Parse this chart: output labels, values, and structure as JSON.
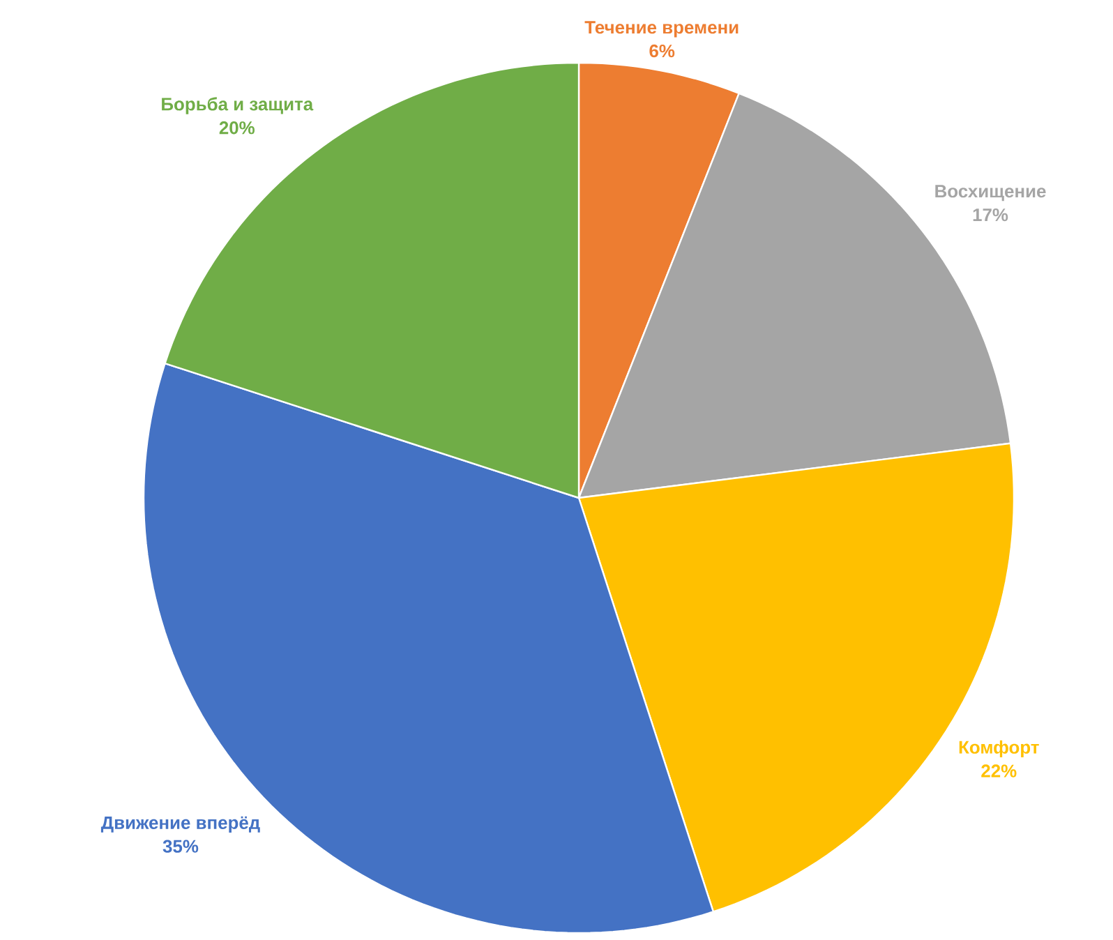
{
  "chart_data": {
    "type": "pie",
    "categories": [
      "Течение времени",
      "Восхищение",
      "Комфорт",
      "Движение вперёд",
      "Борьба и защита"
    ],
    "values": [
      6,
      17,
      22,
      35,
      20
    ],
    "colors": [
      "#ed7d31",
      "#a5a5a5",
      "#ffc000",
      "#4472c4",
      "#70ad47"
    ],
    "value_labels": [
      "6%",
      "17%",
      "22%",
      "35%",
      "20%"
    ]
  }
}
